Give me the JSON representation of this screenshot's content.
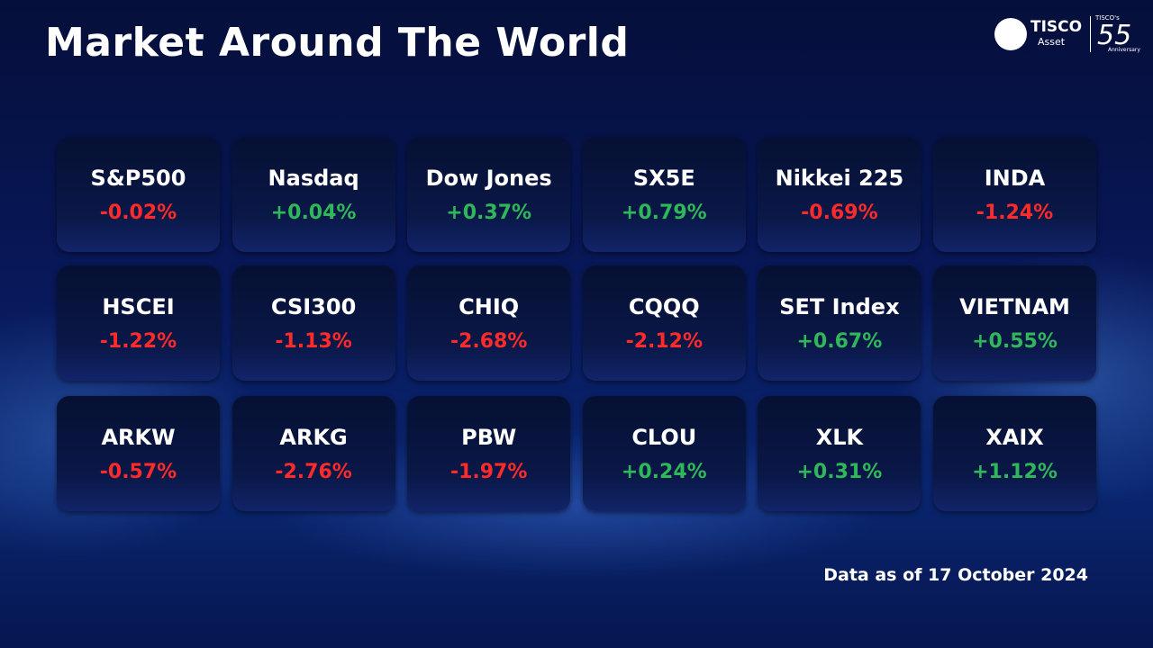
{
  "header": {
    "title": "Market Around The World",
    "logo": {
      "brand": "TISCO",
      "sub": "Asset",
      "anniversary_brand": "TISCO's",
      "anniversary_number": "55",
      "anniversary_text": "Anniversary"
    }
  },
  "tiles": [
    {
      "name": "S&P500",
      "change": "-0.02%",
      "color": "#ff2a2a"
    },
    {
      "name": "Nasdaq",
      "change": "+0.04%",
      "color": "#2fb85a"
    },
    {
      "name": "Dow Jones",
      "change": "+0.37%",
      "color": "#2fb85a"
    },
    {
      "name": "SX5E",
      "change": "+0.79%",
      "color": "#2fb85a"
    },
    {
      "name": "Nikkei 225",
      "change": "-0.69%",
      "color": "#ff2a2a"
    },
    {
      "name": "INDA",
      "change": "-1.24%",
      "color": "#ff2a2a"
    },
    {
      "name": "HSCEI",
      "change": "-1.22%",
      "color": "#ff2a2a"
    },
    {
      "name": "CSI300",
      "change": "-1.13%",
      "color": "#ff2a2a"
    },
    {
      "name": "CHIQ",
      "change": "-2.68%",
      "color": "#ff2a2a"
    },
    {
      "name": "CQQQ",
      "change": "-2.12%",
      "color": "#ff2a2a"
    },
    {
      "name": "SET Index",
      "change": "+0.67%",
      "color": "#2fb85a"
    },
    {
      "name": "VIETNAM",
      "change": "+0.55%",
      "color": "#2fb85a"
    },
    {
      "name": "ARKW",
      "change": "-0.57%",
      "color": "#ff2a2a"
    },
    {
      "name": "ARKG",
      "change": "-2.76%",
      "color": "#ff2a2a"
    },
    {
      "name": "PBW",
      "change": "-1.97%",
      "color": "#ff2a2a"
    },
    {
      "name": "CLOU",
      "change": "+0.24%",
      "color": "#2fb85a"
    },
    {
      "name": "XLK",
      "change": "+0.31%",
      "color": "#2fb85a"
    },
    {
      "name": "XAIX",
      "change": "+1.12%",
      "color": "#2fb85a"
    }
  ],
  "footer": {
    "note": "Data as of 17 October 2024"
  }
}
